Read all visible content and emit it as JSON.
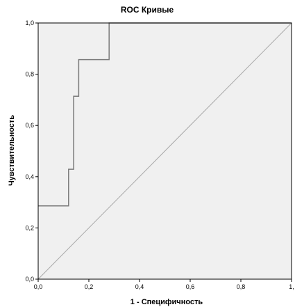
{
  "chart_data": {
    "type": "line",
    "title": "ROC Кривые",
    "xlabel": "1 - Специфичность",
    "ylabel": "Чувствительность",
    "xlim": [
      0,
      1
    ],
    "ylim": [
      0,
      1
    ],
    "x_ticks": [
      "0,0",
      "0,2",
      "0,4",
      "0,6",
      "0,8",
      "1,"
    ],
    "y_ticks": [
      "0,0",
      "0,2",
      "0,4",
      "0,6",
      "0,8",
      "1,0"
    ],
    "grid": false,
    "colors": {
      "plot_background": "#f0f0f0",
      "roc_line": "#7a7a7a",
      "reference_line": "#a8a8a8",
      "frame": "#000000"
    },
    "series": [
      {
        "values": [
          {
            "x": 0.0,
            "y": 0.286
          },
          {
            "x": 0.12,
            "y": 0.286
          },
          {
            "x": 0.12,
            "y": 0.429
          },
          {
            "x": 0.14,
            "y": 0.429
          },
          {
            "x": 0.14,
            "y": 0.714
          },
          {
            "x": 0.16,
            "y": 0.714
          },
          {
            "x": 0.16,
            "y": 0.857
          },
          {
            "x": 0.28,
            "y": 0.857
          },
          {
            "x": 0.28,
            "y": 1.0
          },
          {
            "x": 1.0,
            "y": 1.0
          }
        ]
      },
      {
        "values": [
          {
            "x": 0.0,
            "y": 0.0
          },
          {
            "x": 1.0,
            "y": 1.0
          }
        ]
      }
    ]
  }
}
